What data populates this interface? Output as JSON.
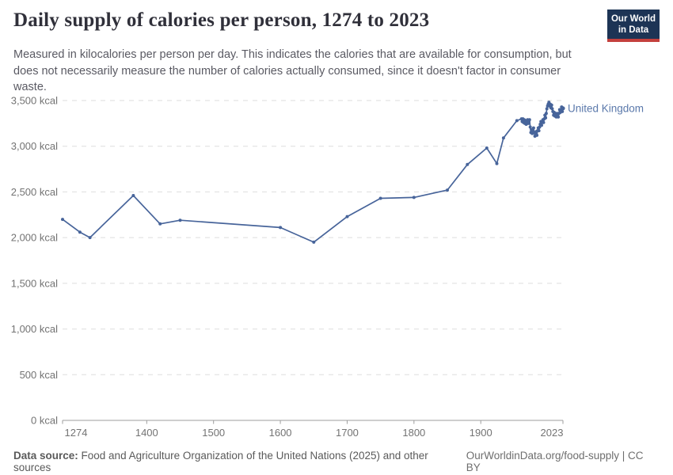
{
  "header": {
    "title": "Daily supply of calories per person, 1274 to 2023",
    "subtitle": "Measured in kilocalories per person per day. This indicates the calories that are available for consumption, but does not necessarily measure the number of calories actually consumed, since it doesn't factor in consumer waste."
  },
  "logo": {
    "line1": "Our World",
    "line2": "in Data",
    "bg_color": "#1d3455",
    "accent_color": "#c4403d"
  },
  "footer": {
    "source_label": "Data source:",
    "source_text": " Food and Agriculture Organization of the United Nations (2025) and other sources",
    "link": "OurWorldinData.org/food-supply | CC BY"
  },
  "chart_data": {
    "type": "line",
    "title": "Daily supply of calories per person, 1274 to 2023",
    "unit": "kcal",
    "xlim": [
      1274,
      2023
    ],
    "ylim": [
      0,
      3500
    ],
    "grid": "horizontal-dashed",
    "legend_position": "end-of-line-label",
    "x_ticks": [
      1274,
      1400,
      1500,
      1600,
      1700,
      1800,
      1900,
      2023
    ],
    "y_ticks": [
      {
        "value": 0,
        "label": "0 kcal"
      },
      {
        "value": 500,
        "label": "500 kcal"
      },
      {
        "value": 1000,
        "label": "1,000 kcal"
      },
      {
        "value": 1500,
        "label": "1,500 kcal"
      },
      {
        "value": 2000,
        "label": "2,000 kcal"
      },
      {
        "value": 2500,
        "label": "2,500 kcal"
      },
      {
        "value": 3000,
        "label": "3,000 kcal"
      },
      {
        "value": 3500,
        "label": "3,500 kcal"
      }
    ],
    "colors": {
      "line": "#47649a",
      "entity_label": "#5b79ab",
      "gridline": "#dedede",
      "axis": "#9e9e9e",
      "tick_label": "#737373"
    },
    "series": [
      {
        "name": "United Kingdom",
        "points": [
          [
            1274,
            2200
          ],
          [
            1300,
            2060
          ],
          [
            1315,
            2000
          ],
          [
            1380,
            2460
          ],
          [
            1420,
            2150
          ],
          [
            1450,
            2190
          ],
          [
            1600,
            2110
          ],
          [
            1650,
            1950
          ],
          [
            1700,
            2230
          ],
          [
            1750,
            2430
          ],
          [
            1800,
            2440
          ],
          [
            1850,
            2520
          ],
          [
            1880,
            2800
          ],
          [
            1909,
            2980
          ],
          [
            1924,
            2810
          ],
          [
            1934,
            3090
          ],
          [
            1954,
            3280
          ],
          [
            1961,
            3300
          ],
          [
            1962,
            3270
          ],
          [
            1963,
            3300
          ],
          [
            1964,
            3260
          ],
          [
            1965,
            3290
          ],
          [
            1966,
            3250
          ],
          [
            1967,
            3280
          ],
          [
            1968,
            3240
          ],
          [
            1969,
            3270
          ],
          [
            1970,
            3290
          ],
          [
            1971,
            3250
          ],
          [
            1972,
            3270
          ],
          [
            1973,
            3290
          ],
          [
            1974,
            3210
          ],
          [
            1975,
            3150
          ],
          [
            1976,
            3180
          ],
          [
            1977,
            3140
          ],
          [
            1978,
            3170
          ],
          [
            1979,
            3200
          ],
          [
            1980,
            3150
          ],
          [
            1981,
            3110
          ],
          [
            1982,
            3130
          ],
          [
            1983,
            3160
          ],
          [
            1984,
            3120
          ],
          [
            1985,
            3170
          ],
          [
            1986,
            3200
          ],
          [
            1987,
            3170
          ],
          [
            1988,
            3210
          ],
          [
            1989,
            3240
          ],
          [
            1990,
            3270
          ],
          [
            1991,
            3230
          ],
          [
            1992,
            3260
          ],
          [
            1993,
            3290
          ],
          [
            1994,
            3260
          ],
          [
            1995,
            3300
          ],
          [
            1996,
            3340
          ],
          [
            1997,
            3310
          ],
          [
            1998,
            3360
          ],
          [
            1999,
            3410
          ],
          [
            2000,
            3440
          ],
          [
            2001,
            3460
          ],
          [
            2002,
            3480
          ],
          [
            2003,
            3440
          ],
          [
            2004,
            3460
          ],
          [
            2005,
            3420
          ],
          [
            2006,
            3450
          ],
          [
            2007,
            3410
          ],
          [
            2008,
            3380
          ],
          [
            2009,
            3340
          ],
          [
            2010,
            3370
          ],
          [
            2011,
            3330
          ],
          [
            2012,
            3350
          ],
          [
            2013,
            3320
          ],
          [
            2014,
            3360
          ],
          [
            2015,
            3340
          ],
          [
            2016,
            3320
          ],
          [
            2017,
            3360
          ],
          [
            2018,
            3400
          ],
          [
            2019,
            3370
          ],
          [
            2020,
            3400
          ],
          [
            2021,
            3430
          ],
          [
            2022,
            3380
          ],
          [
            2023,
            3415
          ]
        ]
      }
    ]
  }
}
